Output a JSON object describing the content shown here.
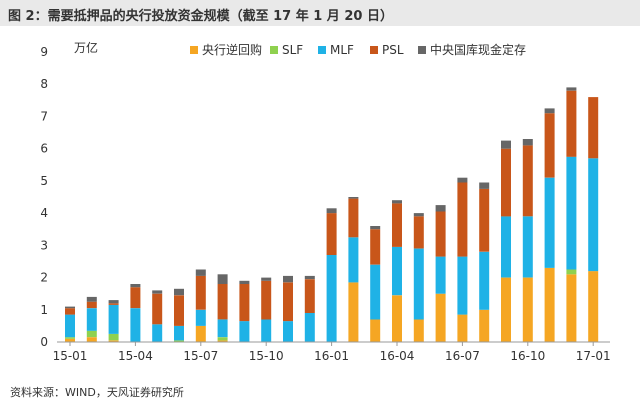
{
  "title": "图 2：需要抵押品的央行投放资金规模（截至 17 年 1 月 20 日）",
  "source": "资料来源：WIND，天风证券研究所",
  "chart_data": {
    "type": "bar",
    "stacked": true,
    "ylabel": "万亿",
    "ylim": [
      0,
      9
    ],
    "yticks": [
      0,
      1,
      2,
      3,
      4,
      5,
      6,
      7,
      8,
      9
    ],
    "xtick_labels": [
      "15-01",
      "15-04",
      "15-07",
      "15-10",
      "16-01",
      "16-04",
      "16-07",
      "16-10",
      "17-01"
    ],
    "xtick_index": [
      0,
      3,
      6,
      9,
      12,
      15,
      18,
      21,
      24
    ],
    "legend_position": "top",
    "grid": false,
    "categories": [
      "2015-01",
      "2015-02",
      "2015-03",
      "2015-04",
      "2015-05",
      "2015-06",
      "2015-07",
      "2015-08",
      "2015-09",
      "2015-10",
      "2015-11",
      "2015-12",
      "2016-01",
      "2016-02",
      "2016-03",
      "2016-04",
      "2016-05",
      "2016-06",
      "2016-07",
      "2016-08",
      "2016-09",
      "2016-10",
      "2016-11",
      "2016-12",
      "2017-01"
    ],
    "series": [
      {
        "name": "央行逆回购",
        "color": "#f5a623",
        "values": [
          0.1,
          0.15,
          0.05,
          0.0,
          0.0,
          0.0,
          0.5,
          0.05,
          0.0,
          0.0,
          0.0,
          0.0,
          0.0,
          1.85,
          0.7,
          1.45,
          0.7,
          1.5,
          0.85,
          1.0,
          2.0,
          2.0,
          2.3,
          2.1,
          2.2
        ]
      },
      {
        "name": "SLF",
        "color": "#8fd14f",
        "values": [
          0.05,
          0.2,
          0.2,
          0.0,
          0.0,
          0.05,
          0.0,
          0.1,
          0.0,
          0.0,
          0.0,
          0.0,
          0.0,
          0.0,
          0.0,
          0.0,
          0.0,
          0.0,
          0.0,
          0.0,
          0.0,
          0.0,
          0.0,
          0.15,
          0.0
        ]
      },
      {
        "name": "MLF",
        "color": "#1fb2e6",
        "values": [
          0.7,
          0.7,
          0.9,
          1.05,
          0.55,
          0.45,
          0.5,
          0.55,
          0.65,
          0.7,
          0.65,
          0.9,
          2.7,
          1.4,
          1.7,
          1.5,
          2.2,
          1.15,
          1.8,
          1.8,
          1.9,
          1.9,
          2.8,
          3.5,
          3.5
        ]
      },
      {
        "name": "PSL",
        "color": "#c8561a",
        "values": [
          0.2,
          0.2,
          0.05,
          0.65,
          0.95,
          0.95,
          1.05,
          1.1,
          1.15,
          1.2,
          1.2,
          1.05,
          1.3,
          1.2,
          1.1,
          1.35,
          1.0,
          1.4,
          2.3,
          1.95,
          2.1,
          2.2,
          2.0,
          2.05,
          1.9
        ]
      },
      {
        "name": "中央国库现金定存",
        "color": "#666666",
        "values": [
          0.05,
          0.15,
          0.1,
          0.1,
          0.1,
          0.2,
          0.2,
          0.3,
          0.1,
          0.1,
          0.2,
          0.1,
          0.15,
          0.05,
          0.1,
          0.1,
          0.1,
          0.2,
          0.15,
          0.2,
          0.25,
          0.2,
          0.15,
          0.1,
          0.0
        ]
      }
    ]
  }
}
